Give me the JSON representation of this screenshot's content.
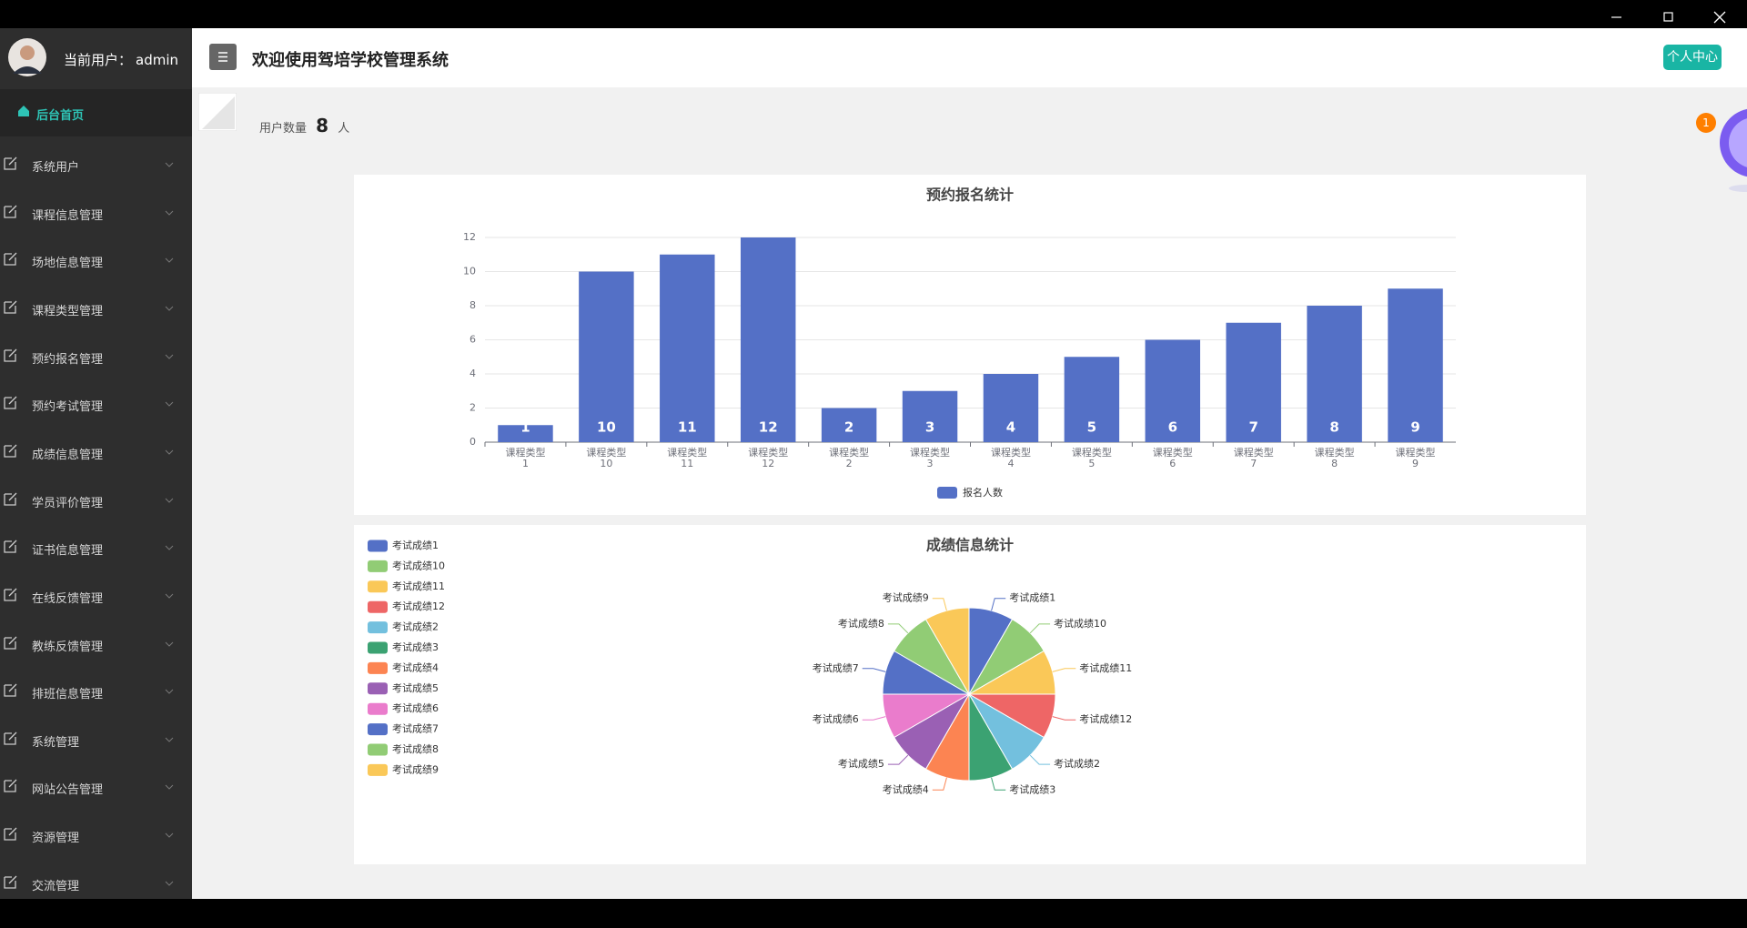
{
  "sidebar": {
    "user_label": "当前用户：",
    "user_name": "admin",
    "menu": [
      "后台首页",
      "系统用户",
      "课程信息管理",
      "场地信息管理",
      "课程类型管理",
      "预约报名管理",
      "预约考试管理",
      "成绩信息管理",
      "学员评价管理",
      "证书信息管理",
      "在线反馈管理",
      "教练反馈管理",
      "排班信息管理",
      "系统管理",
      "网站公告管理",
      "资源管理",
      "交流管理"
    ]
  },
  "header": {
    "title": "欢迎使用驾培学校管理系统",
    "button": "个人中心"
  },
  "stats": {
    "label": "用户数量",
    "value": 8,
    "unit": "人"
  },
  "badge": 1,
  "chart_data": [
    {
      "type": "bar",
      "title": "预约报名统计",
      "categories": [
        "课程类型1",
        "课程类型10",
        "课程类型11",
        "课程类型12",
        "课程类型2",
        "课程类型3",
        "课程类型4",
        "课程类型5",
        "课程类型6",
        "课程类型7",
        "课程类型8",
        "课程类型9"
      ],
      "series": [
        {
          "name": "报名人数",
          "color": "#5470c6",
          "values": [
            1,
            10,
            11,
            12,
            2,
            3,
            4,
            5,
            6,
            7,
            8,
            9
          ]
        }
      ],
      "ylim": [
        0,
        12
      ],
      "yticks": [
        0,
        2,
        4,
        6,
        8,
        10,
        12
      ],
      "grid": true,
      "legend": "bottom"
    },
    {
      "type": "pie",
      "title": "成绩信息统计",
      "categories": [
        "考试成绩1",
        "考试成绩10",
        "考试成绩11",
        "考试成绩12",
        "考试成绩2",
        "考试成绩3",
        "考试成绩4",
        "考试成绩5",
        "考试成绩6",
        "考试成绩7",
        "考试成绩8",
        "考试成绩9"
      ],
      "values": [
        1,
        1,
        1,
        1,
        1,
        1,
        1,
        1,
        1,
        1,
        1,
        1
      ],
      "colors": [
        "#5470c6",
        "#91cc75",
        "#fac858",
        "#ee6666",
        "#73c0de",
        "#3ba272",
        "#fc8452",
        "#9a60b4",
        "#ea7ccc",
        "#5470c6",
        "#91cc75",
        "#fac858"
      ],
      "legend": "left"
    }
  ]
}
